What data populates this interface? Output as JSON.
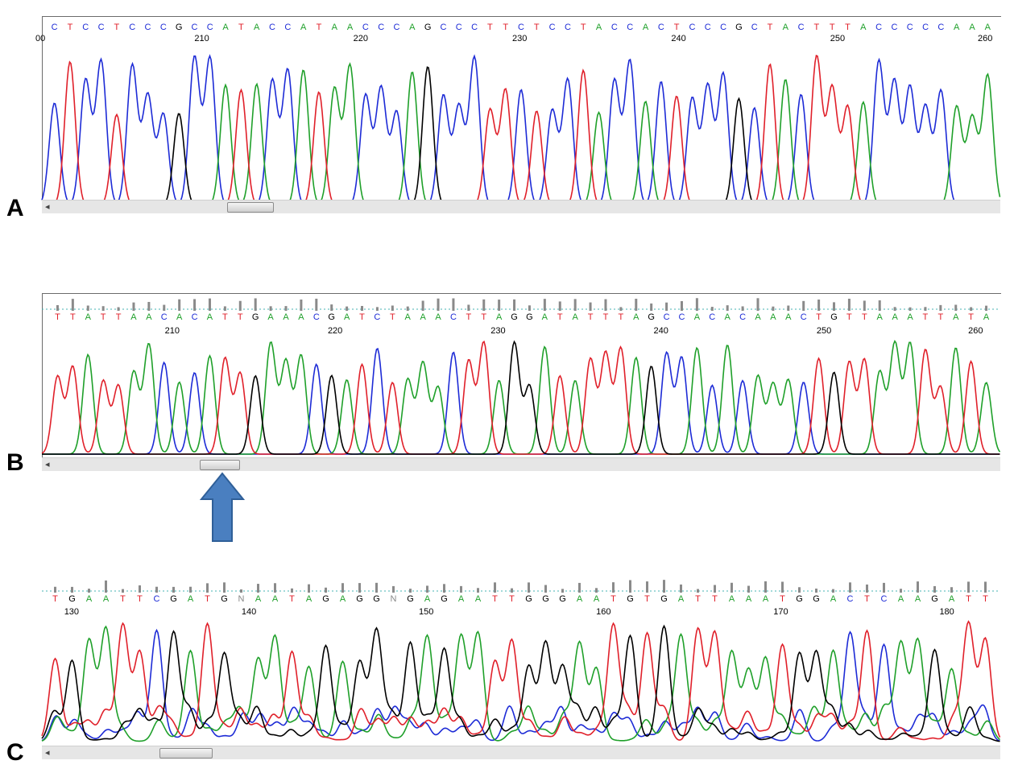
{
  "colors": {
    "A": "#1fa02a",
    "C": "#1d2bd6",
    "G": "#000000",
    "T": "#e0202a",
    "N": "#888888"
  },
  "panels": [
    {
      "letter": "A",
      "sequence": "CTCCTCCCGCCATACCATAACCCAGCCCTTCTCCTACCACTCCCGCTACTTTACCCCCAAA",
      "ruler": [
        "00",
        "210",
        "220",
        "230",
        "240",
        "250",
        "260"
      ],
      "has_quality_bars": false,
      "trace_seed": 7
    },
    {
      "letter": "B",
      "sequence": "TTATTAACACATTGAAACGATCTAAACTTAGGATATTTAGCCACACAAACTGTTAAATTATA",
      "ruler": [
        "210",
        "220",
        "230",
        "240",
        "250",
        "260"
      ],
      "has_quality_bars": true,
      "trace_seed": 13
    },
    {
      "letter": "C",
      "sequence": "TGAATTCGATGNAATAGAGGNGAGAATTGGGAATGTGATTAAATGGACTCAAGATT",
      "ruler": [
        "130",
        "140",
        "150",
        "160",
        "170",
        "180"
      ],
      "has_quality_bars": true,
      "trace_seed": 29
    }
  ],
  "arrow": {
    "color": "#4a7fc0",
    "direction": "up",
    "points_to": "B"
  }
}
